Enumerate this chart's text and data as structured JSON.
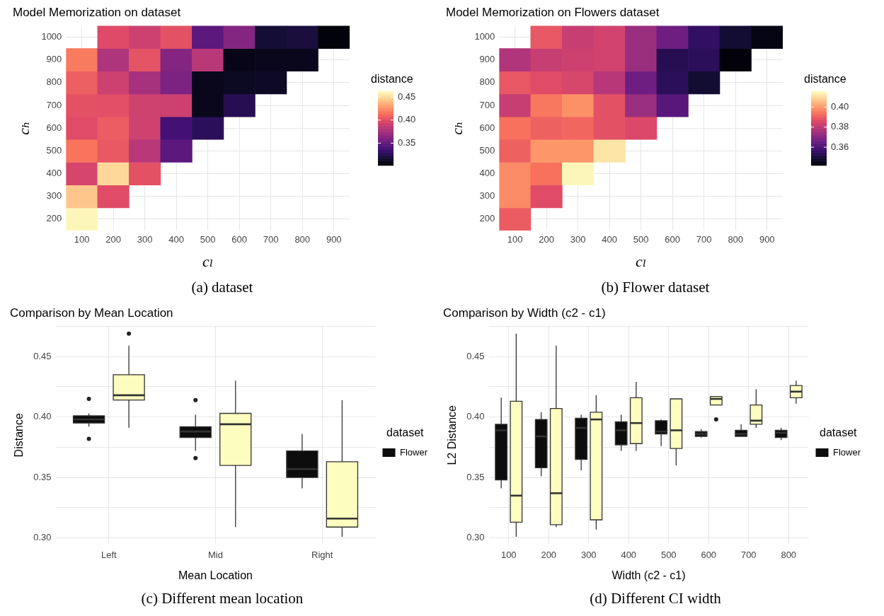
{
  "chart_data": [
    {
      "type": "heatmap",
      "title": "Model Memorization on dataset",
      "xlabel": "cₗ",
      "ylabel": "cₕ",
      "clabel": "distance",
      "annotations": [
        "(a) dataset"
      ],
      "grid": true,
      "categories": [
        "100",
        "200",
        "300",
        "400",
        "500",
        "600",
        "700",
        "800",
        "900"
      ],
      "y_categories": [
        "1000",
        "900",
        "800",
        "700",
        "600",
        "500",
        "400",
        "300",
        "200"
      ],
      "cells": [
        [
          null,
          0.399,
          0.391,
          0.402,
          0.347,
          0.363,
          0.318,
          0.32,
          0.304
        ],
        [
          0.418,
          0.379,
          0.403,
          0.363,
          0.383,
          0.308,
          0.31,
          0.31,
          null
        ],
        [
          0.408,
          0.391,
          0.376,
          0.36,
          0.31,
          0.312,
          0.313,
          null,
          null
        ],
        [
          0.402,
          0.401,
          0.392,
          0.391,
          0.31,
          0.326,
          null,
          null,
          null
        ],
        [
          0.4,
          0.407,
          0.392,
          0.337,
          0.328,
          null,
          null,
          null,
          null
        ],
        [
          0.416,
          0.405,
          0.383,
          0.347,
          null,
          null,
          null,
          null,
          null
        ],
        [
          0.395,
          0.45,
          0.402,
          null,
          null,
          null,
          null,
          null,
          null
        ],
        [
          0.444,
          0.4,
          null,
          null,
          null,
          null,
          null,
          null,
          null
        ],
        [
          0.461,
          null,
          null,
          null,
          null,
          null,
          null,
          null,
          null
        ]
      ],
      "clim": [
        0.302,
        0.463
      ],
      "cticks": [
        {
          "value": 0.35,
          "label": "0.35"
        },
        {
          "value": 0.4,
          "label": "0.40"
        },
        {
          "value": 0.45,
          "label": "0.45"
        }
      ]
    },
    {
      "type": "heatmap",
      "title": "Model Memorization on Flowers dataset",
      "xlabel": "cₗ",
      "ylabel": "cₕ",
      "clabel": "distance",
      "annotations": [
        "(b) Flower dataset"
      ],
      "grid": true,
      "categories": [
        "100",
        "200",
        "300",
        "400",
        "500",
        "600",
        "700",
        "800",
        "900"
      ],
      "y_categories": [
        "1000",
        "900",
        "800",
        "700",
        "600",
        "500",
        "400",
        "300",
        "200"
      ],
      "cells": [
        [
          null,
          0.389,
          0.382,
          0.384,
          0.374,
          0.366,
          0.355,
          0.349,
          0.344
        ],
        [
          0.378,
          0.382,
          0.383,
          0.384,
          0.374,
          0.353,
          0.354,
          0.343,
          null
        ],
        [
          0.389,
          0.387,
          0.385,
          0.379,
          0.366,
          0.354,
          0.349,
          null,
          null
        ],
        [
          0.382,
          0.395,
          0.399,
          0.388,
          0.374,
          0.362,
          null,
          null,
          null
        ],
        [
          0.394,
          0.391,
          0.392,
          0.388,
          0.386,
          null,
          null,
          null,
          null
        ],
        [
          0.391,
          0.4,
          0.4,
          0.412,
          null,
          null,
          null,
          null,
          null
        ],
        [
          0.398,
          0.394,
          0.415,
          null,
          null,
          null,
          null,
          null,
          null
        ],
        [
          0.398,
          0.387,
          null,
          null,
          null,
          null,
          null,
          null,
          null
        ],
        [
          0.39,
          null,
          null,
          null,
          null,
          null,
          null,
          null,
          null
        ]
      ],
      "clim": [
        0.342,
        0.416
      ],
      "cticks": [
        {
          "value": 0.36,
          "label": "0.36"
        },
        {
          "value": 0.38,
          "label": "0.38"
        },
        {
          "value": 0.4,
          "label": "0.40"
        }
      ]
    },
    {
      "type": "box",
      "title": "Comparison by Mean Location",
      "xlabel": "Mean Location",
      "ylabel": "Distance",
      "legend_title": "dataset",
      "legend": "right",
      "grid": true,
      "annotations": [
        "(c) Different mean location"
      ],
      "categories": [
        "Left",
        "Mid",
        "Right"
      ],
      "ylim": [
        0.295,
        0.475
      ],
      "yticks": [
        {
          "value": 0.3,
          "label": "0.30"
        },
        {
          "value": 0.325,
          "label": null
        },
        {
          "value": 0.35,
          "label": "0.35"
        },
        {
          "value": 0.375,
          "label": null
        },
        {
          "value": 0.4,
          "label": "0.40"
        },
        {
          "value": 0.425,
          "label": null
        },
        {
          "value": 0.45,
          "label": "0.45"
        },
        {
          "value": 0.475,
          "label": null
        }
      ],
      "series": [
        {
          "name": "Flower",
          "color": "#0d0d0d",
          "boxes": [
            {
              "low": 0.392,
              "q1": 0.395,
              "median": 0.398,
              "q3": 0.401,
              "high": 0.403,
              "outliers": [
                0.415,
                0.382
              ]
            },
            {
              "low": 0.372,
              "q1": 0.383,
              "median": 0.388,
              "q3": 0.392,
              "high": 0.402,
              "outliers": [
                0.414,
                0.366
              ]
            },
            {
              "low": 0.341,
              "q1": 0.35,
              "median": 0.357,
              "q3": 0.372,
              "high": 0.386
            }
          ]
        },
        {
          "color": "#fcfdbf",
          "boxes": [
            {
              "low": 0.391,
              "q1": 0.414,
              "median": 0.418,
              "q3": 0.435,
              "high": 0.459,
              "outliers": [
                0.469
              ]
            },
            {
              "low": 0.309,
              "q1": 0.36,
              "median": 0.394,
              "q3": 0.403,
              "high": 0.43
            },
            {
              "low": 0.301,
              "q1": 0.309,
              "median": 0.316,
              "q3": 0.363,
              "high": 0.414
            }
          ]
        }
      ]
    },
    {
      "type": "box",
      "title": "Comparison by Width (c2 - c1)",
      "xlabel": "Width (c2 - c1)",
      "ylabel": "L2 Distance",
      "legend_title": "dataset",
      "legend": "right",
      "grid": true,
      "annotations": [
        "(d) Different CI width"
      ],
      "categories": [
        "100",
        "200",
        "300",
        "400",
        "500",
        "600",
        "700",
        "800"
      ],
      "ylim": [
        0.295,
        0.475
      ],
      "yticks": [
        {
          "value": 0.3,
          "label": "0.30"
        },
        {
          "value": 0.325,
          "label": null
        },
        {
          "value": 0.35,
          "label": "0.35"
        },
        {
          "value": 0.375,
          "label": null
        },
        {
          "value": 0.4,
          "label": "0.40"
        },
        {
          "value": 0.425,
          "label": null
        },
        {
          "value": 0.45,
          "label": "0.45"
        },
        {
          "value": 0.475,
          "label": null
        }
      ],
      "series": [
        {
          "name": "Flower",
          "color": "#0d0d0d",
          "boxes": [
            {
              "low": 0.341,
              "q1": 0.348,
              "median": 0.389,
              "q3": 0.394,
              "high": 0.416
            },
            {
              "low": 0.351,
              "q1": 0.358,
              "median": 0.384,
              "q3": 0.398,
              "high": 0.404
            },
            {
              "low": 0.356,
              "q1": 0.365,
              "median": 0.391,
              "q3": 0.399,
              "high": 0.402
            },
            {
              "low": 0.372,
              "q1": 0.377,
              "median": 0.389,
              "q3": 0.396,
              "high": 0.402
            },
            {
              "low": 0.376,
              "q1": 0.386,
              "median": 0.388,
              "q3": 0.397,
              "high": 0.398
            },
            {
              "low": 0.383,
              "q1": 0.384,
              "median": 0.386,
              "q3": 0.388,
              "high": 0.39
            },
            {
              "low": 0.384,
              "q1": 0.384,
              "median": 0.386,
              "q3": 0.389,
              "high": 0.394
            },
            {
              "low": 0.381,
              "q1": 0.383,
              "median": 0.387,
              "q3": 0.389,
              "high": 0.391
            }
          ]
        },
        {
          "color": "#fcfdbf",
          "boxes": [
            {
              "low": 0.301,
              "q1": 0.313,
              "median": 0.335,
              "q3": 0.413,
              "high": 0.469
            },
            {
              "low": 0.309,
              "q1": 0.311,
              "median": 0.337,
              "q3": 0.407,
              "high": 0.459
            },
            {
              "low": 0.307,
              "q1": 0.315,
              "median": 0.398,
              "q3": 0.404,
              "high": 0.418
            },
            {
              "low": 0.372,
              "q1": 0.378,
              "median": 0.395,
              "q3": 0.416,
              "high": 0.429
            },
            {
              "low": 0.36,
              "q1": 0.374,
              "median": 0.389,
              "q3": 0.415,
              "high": 0.415
            },
            {
              "low": 0.41,
              "q1": 0.41,
              "median": 0.415,
              "q3": 0.417,
              "high": 0.417,
              "outliers": [
                0.398
              ]
            },
            {
              "low": 0.391,
              "q1": 0.394,
              "median": 0.397,
              "q3": 0.41,
              "high": 0.423
            },
            {
              "low": 0.411,
              "q1": 0.416,
              "median": 0.421,
              "q3": 0.426,
              "high": 0.43
            }
          ]
        }
      ]
    }
  ]
}
